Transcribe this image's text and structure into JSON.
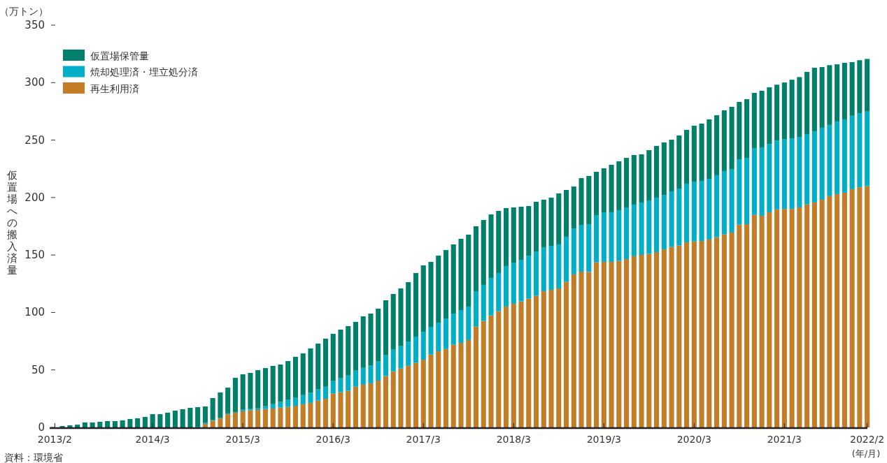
{
  "chart_data": {
    "type": "bar",
    "stacked": true,
    "ylabel": "仮置場への搬入済量",
    "xlabel": "(年/月)",
    "annotations": [
      "（万トン）",
      "資料：環境省"
    ],
    "categories": [
      "2013/2",
      null,
      null,
      null,
      null,
      null,
      null,
      null,
      null,
      null,
      null,
      null,
      null,
      "2014/3",
      null,
      null,
      null,
      null,
      null,
      null,
      null,
      null,
      null,
      null,
      null,
      "2015/3",
      null,
      null,
      null,
      null,
      null,
      null,
      null,
      null,
      null,
      null,
      null,
      "2016/3",
      null,
      null,
      null,
      null,
      null,
      null,
      null,
      null,
      null,
      null,
      null,
      "2017/3",
      null,
      null,
      null,
      null,
      null,
      null,
      null,
      null,
      null,
      null,
      null,
      "2018/3",
      null,
      null,
      null,
      null,
      null,
      null,
      null,
      null,
      null,
      null,
      null,
      "2019/3",
      null,
      null,
      null,
      null,
      null,
      null,
      null,
      null,
      null,
      null,
      null,
      "2020/3",
      null,
      null,
      null,
      null,
      null,
      null,
      null,
      null,
      null,
      null,
      null,
      "2021/3",
      null,
      null,
      null,
      null,
      null,
      null,
      null,
      null,
      null,
      null,
      "2022/2"
    ],
    "ylim": [
      0,
      350
    ],
    "yticks": [
      0,
      50,
      100,
      150,
      200,
      250,
      300,
      350
    ],
    "legend": "top left",
    "series": [
      {
        "name": "再生利用済",
        "color": "#c47d27",
        "values": [
          0,
          0,
          0,
          0,
          0,
          0,
          0,
          0,
          0,
          0,
          0,
          0,
          0,
          0,
          0,
          0,
          0,
          0,
          0,
          0,
          3.0,
          5.7,
          7.9,
          11.5,
          12.8,
          14.0,
          14.8,
          15.2,
          16.0,
          16.4,
          17.2,
          17.8,
          18.8,
          20.1,
          21.3,
          23.3,
          24.9,
          29.4,
          30.6,
          31.8,
          35.4,
          37.1,
          38.3,
          40.7,
          44.6,
          48.8,
          51.2,
          53.6,
          56.1,
          58.9,
          63.4,
          66.2,
          68.2,
          71.9,
          73.5,
          76.0,
          87.7,
          92.6,
          97.4,
          101.1,
          105.1,
          107.6,
          109.6,
          112.0,
          114.4,
          118.5,
          119.7,
          120.9,
          126.6,
          133.1,
          135.5,
          135.3,
          143.6,
          144.0,
          144.0,
          144.8,
          146.4,
          148.9,
          150.1,
          150.9,
          152.5,
          154.9,
          157.0,
          158.2,
          161.0,
          161.8,
          162.2,
          163.5,
          165.5,
          167.9,
          169.5,
          176.4,
          176.8,
          184.9,
          184.1,
          187.2,
          189.7,
          190.1,
          190.1,
          191.4,
          194.0,
          195.7,
          198.1,
          201.2,
          202.9,
          204.2,
          207.2,
          208.9,
          209.8
        ]
      },
      {
        "name": "焼却処理済・埋立処分済",
        "color": "#00aec7",
        "values": [
          0,
          0,
          0,
          0,
          0,
          0,
          0,
          0,
          0,
          0,
          0,
          0,
          0,
          0,
          0,
          0,
          0,
          0,
          0,
          0.6,
          1.2,
          0.6,
          0.6,
          0.7,
          0.6,
          1.4,
          1.2,
          1.4,
          2.4,
          3.8,
          4.9,
          6.1,
          6.9,
          8.0,
          8.7,
          9.7,
          10.5,
          10.9,
          12.1,
          13.3,
          14.0,
          14.7,
          15.4,
          16.6,
          18.2,
          18.8,
          19.5,
          21.1,
          22.9,
          24.3,
          24.1,
          24.9,
          26.6,
          27.1,
          28.6,
          29.1,
          30.8,
          31.4,
          32.6,
          33.2,
          35.3,
          35.8,
          36.2,
          37.5,
          38.7,
          38.3,
          38.3,
          38.3,
          39.3,
          40.1,
          40.7,
          41.5,
          41.1,
          43.2,
          43.2,
          44.2,
          45.0,
          44.9,
          45.6,
          46.6,
          47.4,
          47.4,
          48.4,
          49.6,
          51.1,
          52.1,
          52.3,
          52.8,
          53.9,
          55.1,
          55.3,
          56.9,
          57.7,
          58.2,
          59.6,
          59.4,
          59.9,
          60.8,
          61.4,
          61.4,
          61.2,
          62.0,
          62.6,
          62.0,
          63.3,
          63.8,
          63.9,
          64.5,
          65.0
        ]
      },
      {
        "name": "仮置場保管量",
        "color": "#00806a",
        "values": [
          null,
          1.2,
          1.8,
          2.4,
          4.3,
          4.3,
          4.9,
          5.5,
          5.5,
          6.1,
          7.3,
          7.9,
          9.1,
          11.5,
          11.5,
          12.8,
          14.6,
          15.8,
          17.0,
          17.0,
          14.0,
          19.2,
          21.9,
          22.4,
          29.7,
          30.8,
          31.4,
          33.2,
          33.2,
          33.3,
          32.6,
          33.8,
          35.7,
          36.3,
          38.7,
          39.9,
          41.8,
          41.1,
          42.4,
          43.0,
          42.4,
          44.8,
          45.3,
          46.0,
          47.8,
          48.5,
          50.2,
          51.7,
          55.3,
          57.8,
          56.5,
          58.4,
          59.5,
          60.2,
          62.0,
          62.6,
          56.5,
          56.5,
          55.3,
          54.1,
          50.4,
          48.0,
          46.2,
          43.1,
          43.2,
          41.3,
          41.9,
          44.4,
          40.7,
          36.4,
          40.7,
          42.0,
          37.7,
          38.2,
          41.3,
          42.5,
          43.1,
          43.2,
          41.9,
          43.7,
          45.0,
          45.6,
          44.9,
          46.2,
          46.8,
          48.6,
          49.8,
          51.7,
          52.2,
          52.9,
          54.1,
          49.9,
          51.1,
          48.0,
          49.2,
          49.3,
          48.6,
          49.2,
          51.0,
          52.0,
          54.1,
          55.2,
          52.8,
          52.0,
          49.7,
          49.2,
          46.7,
          46.1,
          45.8
        ]
      }
    ]
  }
}
